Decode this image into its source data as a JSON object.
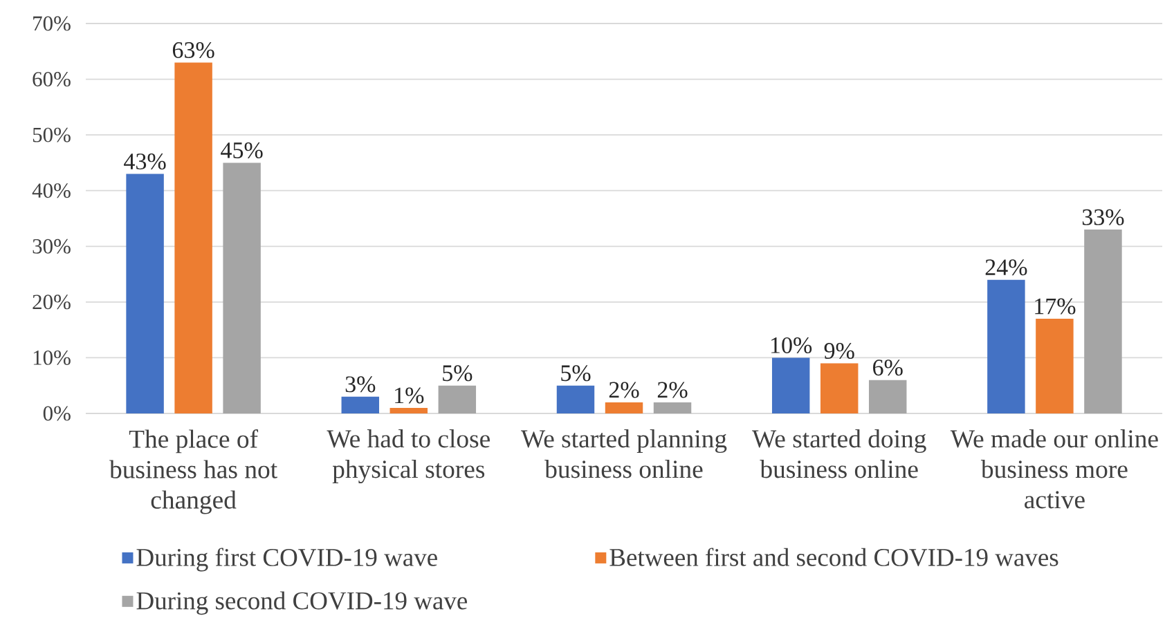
{
  "chart_data": {
    "type": "bar",
    "categories": [
      "The place of business has not changed",
      "We had to close physical stores",
      "We started planning business online",
      "We started doing business online",
      "We made our online business more active"
    ],
    "series": [
      {
        "name": "During first COVID-19 wave",
        "color": "#4472c4",
        "values": [
          43,
          3,
          5,
          10,
          24
        ],
        "value_labels": [
          "43%",
          "3%",
          "5%",
          "10%",
          "24%"
        ]
      },
      {
        "name": "Between first and second COVID-19 waves",
        "color": "#ed7d31",
        "values": [
          63,
          1,
          2,
          9,
          17
        ],
        "value_labels": [
          "63%",
          "1%",
          "2%",
          "9%",
          "17%"
        ]
      },
      {
        "name": "During second COVID-19 wave",
        "color": "#a5a5a5",
        "values": [
          45,
          5,
          2,
          6,
          33
        ],
        "value_labels": [
          "45%",
          "5%",
          "2%",
          "6%",
          "33%"
        ]
      }
    ],
    "ylim": [
      0,
      70
    ],
    "yticks": [
      {
        "value": 0,
        "label": "0%"
      },
      {
        "value": 10,
        "label": "10%"
      },
      {
        "value": 20,
        "label": "20%"
      },
      {
        "value": 30,
        "label": "30%"
      },
      {
        "value": 40,
        "label": "40%"
      },
      {
        "value": 50,
        "label": "50%"
      },
      {
        "value": 60,
        "label": "60%"
      },
      {
        "value": 70,
        "label": "70%"
      }
    ],
    "grid": "y",
    "legend": "bottom"
  }
}
